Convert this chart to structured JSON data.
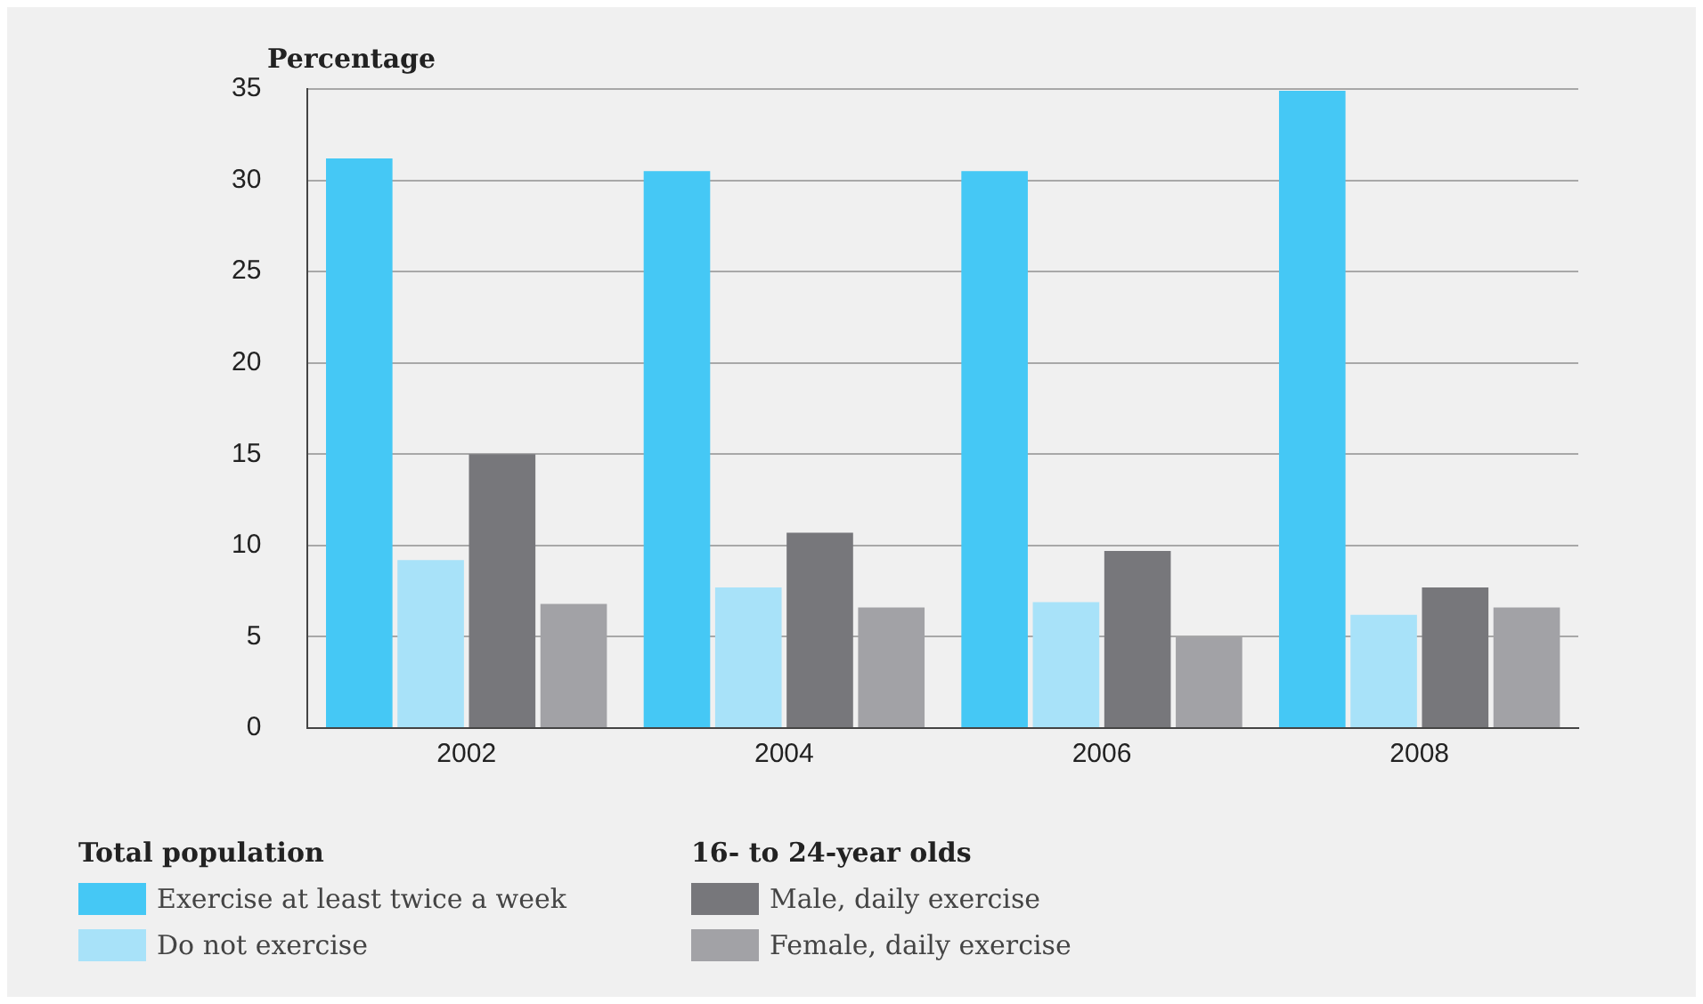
{
  "chart_data": {
    "type": "bar",
    "ylabel": "Percentage",
    "categories": [
      "2002",
      "2004",
      "2006",
      "2008"
    ],
    "series": [
      {
        "name": "Exercise at least twice a week",
        "color": "#45c8f5",
        "values": [
          31.2,
          30.5,
          30.5,
          34.9
        ]
      },
      {
        "name": "Do not exercise",
        "color": "#a8e2f9",
        "values": [
          9.2,
          7.7,
          6.9,
          6.2
        ]
      },
      {
        "name": "Male, daily exercise",
        "color": "#77777b",
        "values": [
          15,
          10.7,
          9.7,
          7.7
        ]
      },
      {
        "name": "Female, daily exercise",
        "color": "#a2a2a6",
        "values": [
          6.8,
          6.6,
          5.0,
          6.6
        ]
      }
    ],
    "annotations": [
      "Total population",
      "16- to 24-year olds"
    ],
    "ylim": [
      0,
      35
    ],
    "yticks": [
      0,
      5,
      10,
      15,
      20,
      25,
      30,
      35
    ],
    "grid": "y",
    "legend": "bottom left"
  }
}
